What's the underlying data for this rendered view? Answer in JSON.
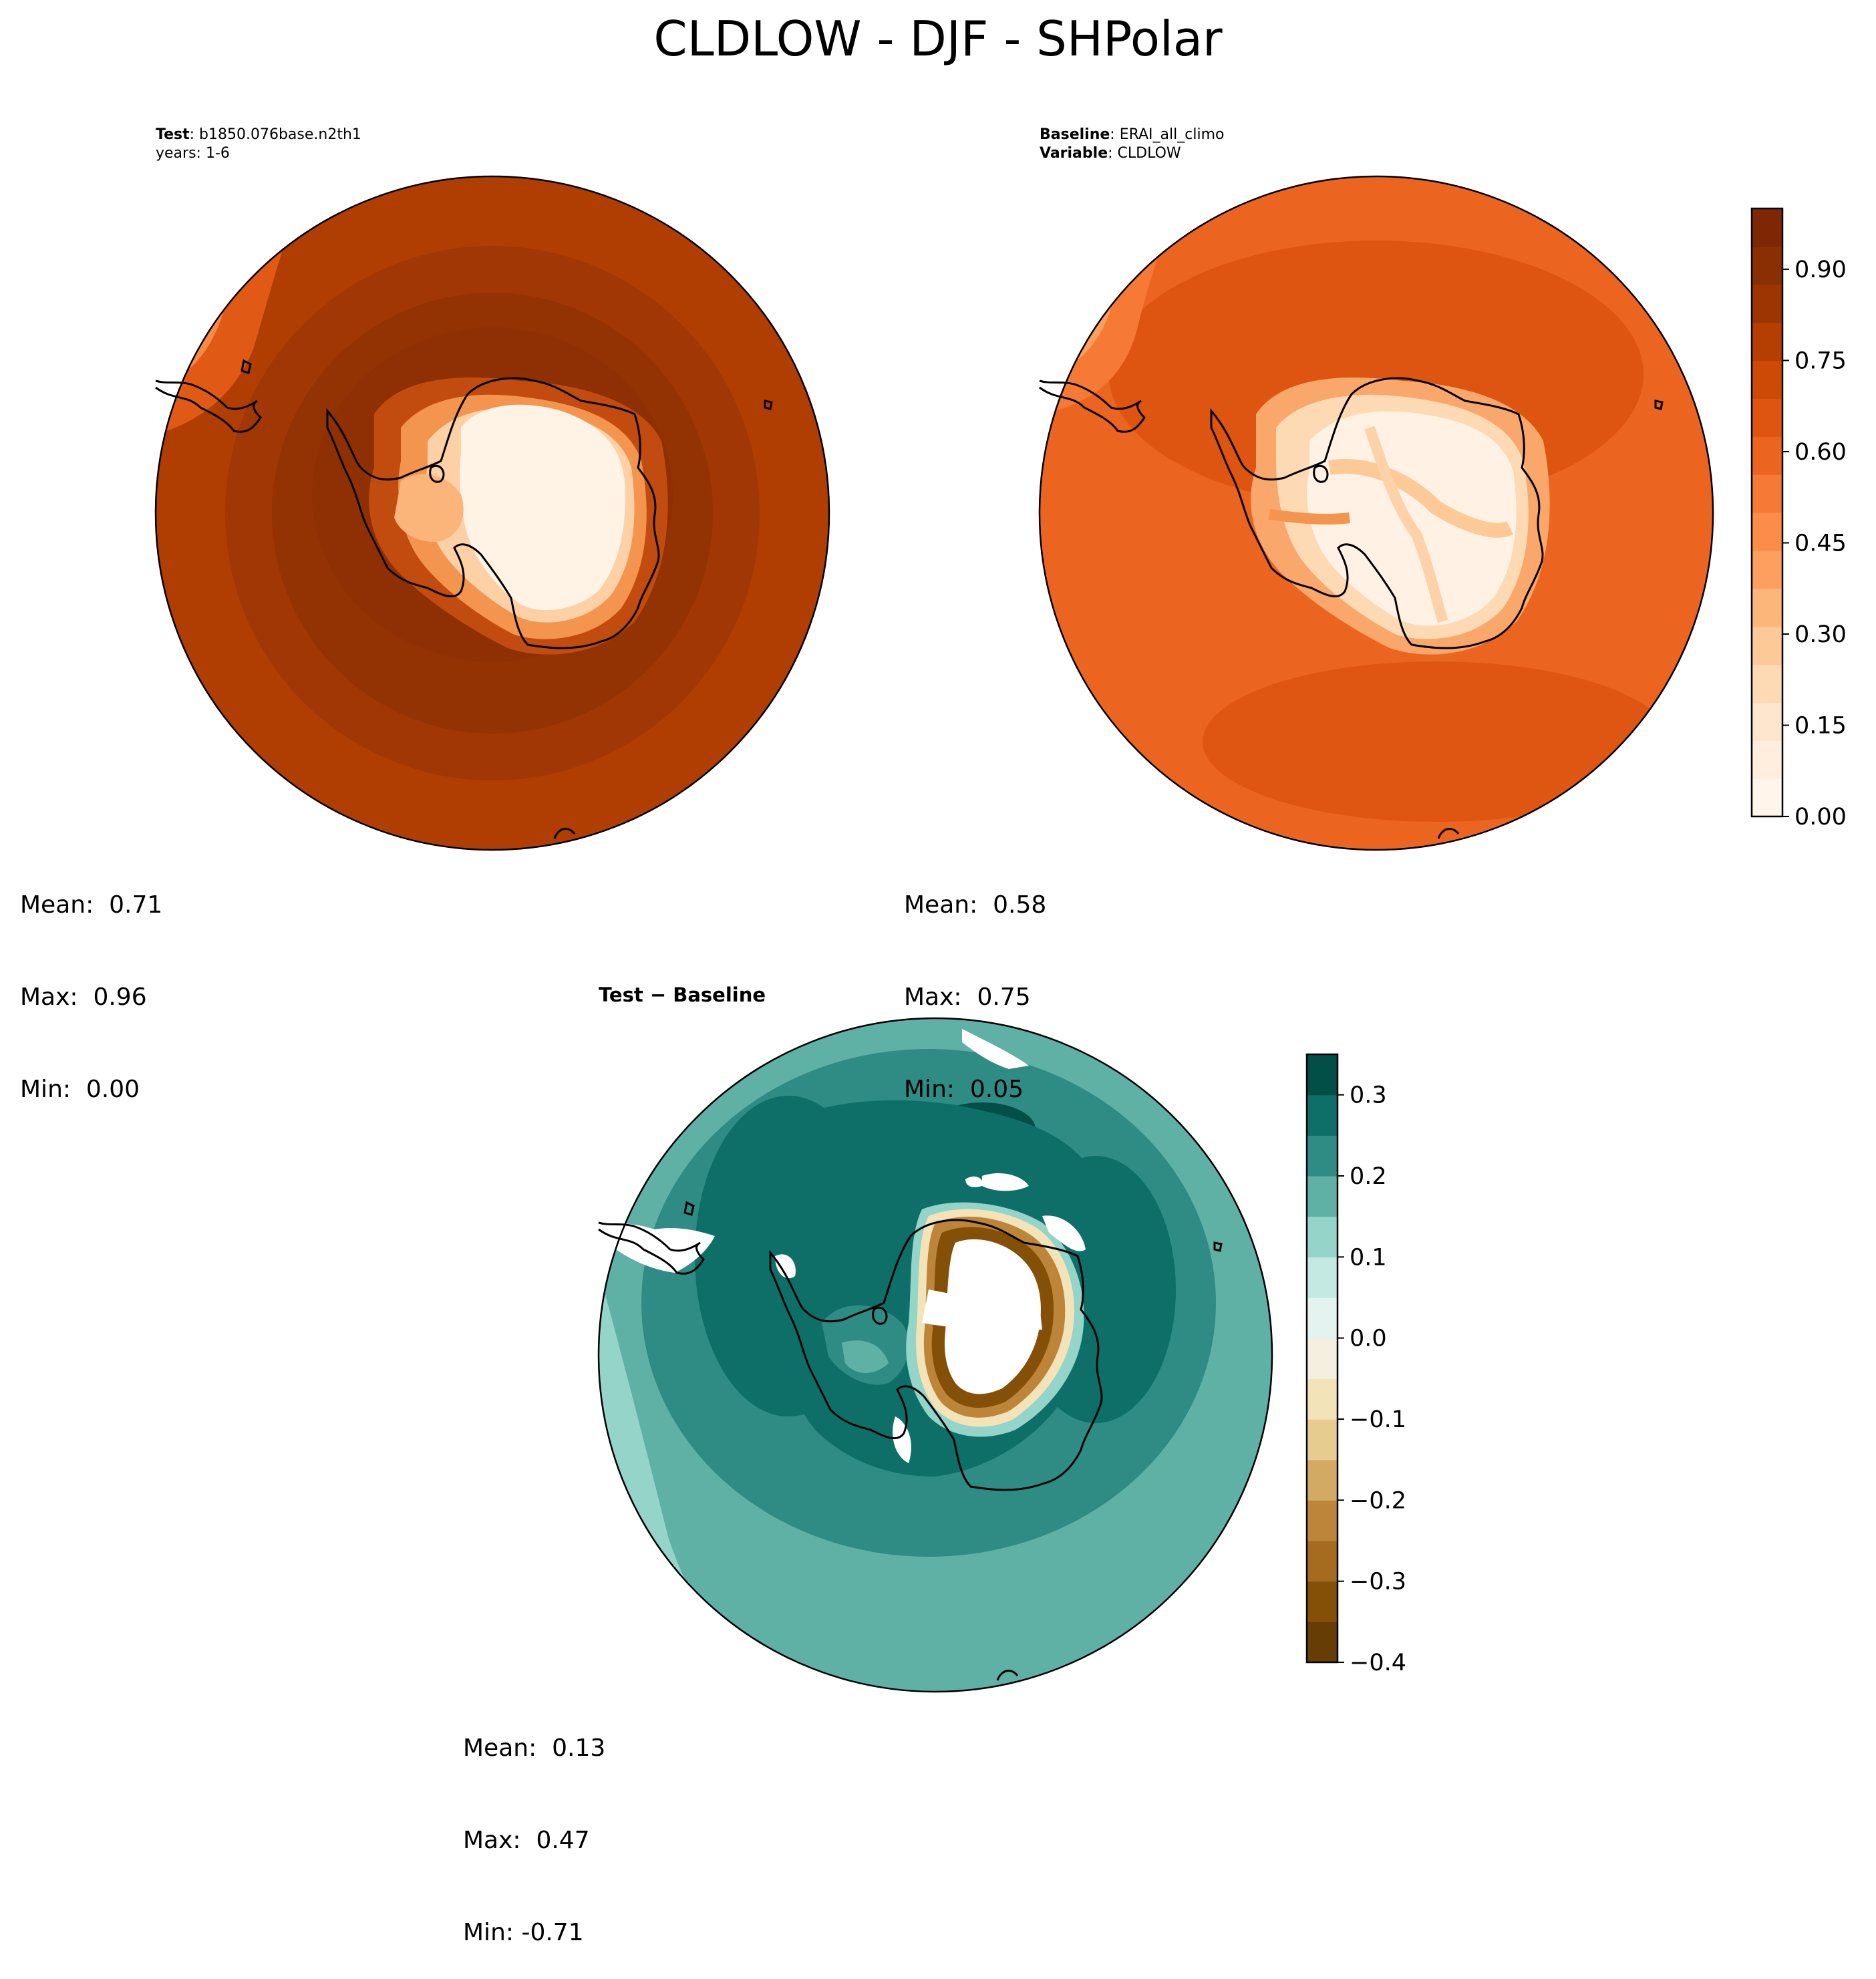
{
  "figure": {
    "title": "CLDLOW - DJF - SHPolar"
  },
  "panels": {
    "test": {
      "label_key": "Test",
      "label_value": "b1850.076base.n2th1",
      "years_line": "years: 1-6",
      "stats": {
        "mean": "Mean:  0.71",
        "max": "Max:  0.96",
        "min": "Min:  0.00"
      }
    },
    "baseline": {
      "label_key": "Baseline",
      "label_value": "ERAI_all_climo",
      "variable_key": "Variable",
      "variable_value": "CLDLOW",
      "stats": {
        "mean": "Mean:  0.58",
        "max": "Max:  0.75",
        "min": "Min:  0.05"
      }
    },
    "diff": {
      "title": "Test − Baseline",
      "stats": {
        "mean": "Mean:  0.13",
        "max": "Max:  0.47",
        "min": "Min: -0.71"
      }
    }
  },
  "chart_data": [
    {
      "type": "heatmap",
      "name": "test",
      "projection": "south-polar-stereographic",
      "stats": {
        "mean": 0.71,
        "max": 0.96,
        "min": 0.0
      },
      "colormap": "Oranges",
      "clim": [
        0,
        1
      ]
    },
    {
      "type": "heatmap",
      "name": "baseline",
      "projection": "south-polar-stereographic",
      "stats": {
        "mean": 0.58,
        "max": 0.75,
        "min": 0.05
      },
      "colormap": "Oranges",
      "clim": [
        0,
        1
      ]
    },
    {
      "type": "heatmap",
      "name": "diff",
      "projection": "south-polar-stereographic",
      "stats": {
        "mean": 0.13,
        "max": 0.47,
        "min": -0.71
      },
      "colormap": "BrBG",
      "clim": [
        -0.4,
        0.35
      ]
    }
  ],
  "colorbars": {
    "top": {
      "ticks": [
        "0.00",
        "0.15",
        "0.30",
        "0.45",
        "0.60",
        "0.75",
        "0.90"
      ],
      "tick_values": [
        0,
        0.15,
        0.3,
        0.45,
        0.6,
        0.75,
        0.9
      ],
      "range": [
        0,
        1
      ],
      "colors": [
        "#fff5eb",
        "#ffeedd",
        "#fee6ce",
        "#fdd9b4",
        "#fdc997",
        "#fdb67a",
        "#fda05f",
        "#fd8c48",
        "#f67935",
        "#ec6520",
        "#de5411",
        "#cc4a05",
        "#b53f02",
        "#9d3503",
        "#8a2f03",
        "#7f2704"
      ]
    },
    "diff": {
      "ticks": [
        "−0.4",
        "−0.3",
        "−0.2",
        "−0.1",
        "0.0",
        "0.1",
        "0.2",
        "0.3"
      ],
      "tick_values": [
        -0.4,
        -0.3,
        -0.2,
        -0.1,
        0.0,
        0.1,
        0.2,
        0.3
      ],
      "range": [
        -0.4,
        0.35
      ],
      "colors": [
        "#663d05",
        "#845008",
        "#a56b1e",
        "#bd8539",
        "#d3aa64",
        "#e6cc8f",
        "#f3e3b8",
        "#f5efe0",
        "#e3f3f0",
        "#c3e9e2",
        "#94d4c9",
        "#5fb1a6",
        "#2e8c84",
        "#0e6f68",
        "#014f46"
      ]
    }
  }
}
